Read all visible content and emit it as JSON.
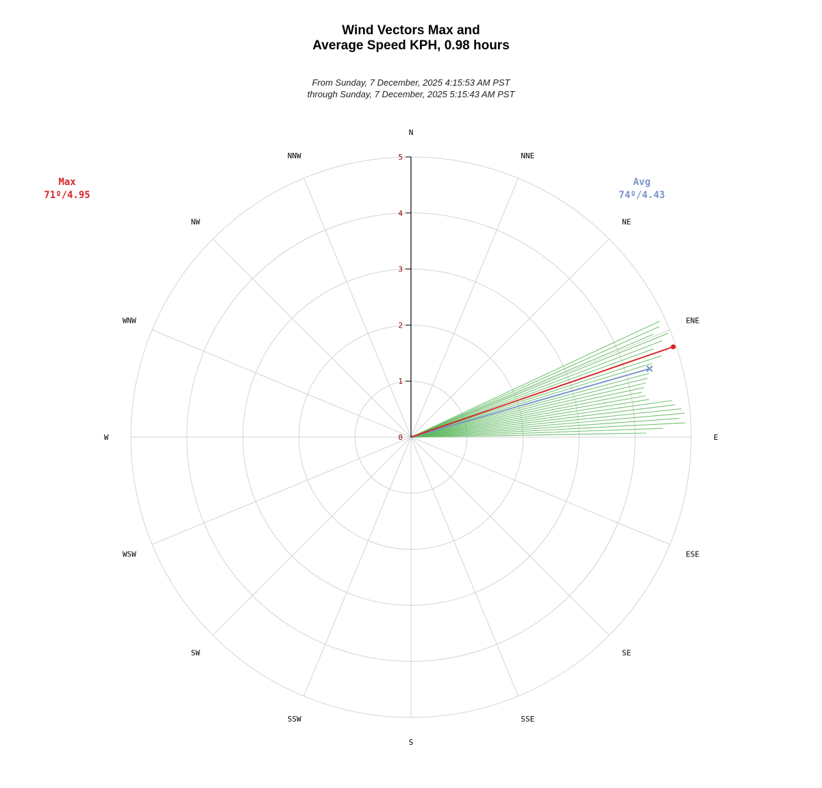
{
  "title_line1": "Wind Vectors Max and",
  "title_line2": "Average Speed KPH, 0.98 hours",
  "subtitle_line1": "From Sunday, 7 December, 2025 4:15:53 AM PST",
  "subtitle_line2": "through Sunday, 7 December, 2025 5:15:43 AM PST",
  "max_label": "Max",
  "max_value": "71º/4.95",
  "avg_label": "Avg",
  "avg_value": "74º/4.43",
  "colors": {
    "max": "#d62728",
    "avg": "#7b96c8",
    "vectors": "#5cb85c",
    "grid": "#d3d3d3",
    "axis": "#000000",
    "tick_label": "#8b0000"
  },
  "chart_data": {
    "type": "polar-vector",
    "title": "Wind Vectors Max and Average Speed KPH, 0.98 hours",
    "radial_ticks": [
      0,
      1,
      2,
      3,
      4,
      5
    ],
    "rlim": [
      0,
      5
    ],
    "directions": [
      "N",
      "NNE",
      "NE",
      "ENE",
      "E",
      "ESE",
      "SE",
      "SSE",
      "S",
      "SSW",
      "SW",
      "WSW",
      "W",
      "WNW",
      "NW",
      "NNW"
    ],
    "max": {
      "direction_deg": 71,
      "speed": 4.95
    },
    "avg": {
      "direction_deg": 74,
      "speed": 4.43
    },
    "vectors": [
      {
        "direction_deg": 65,
        "speed": 4.9
      },
      {
        "direction_deg": 66,
        "speed": 4.85
      },
      {
        "direction_deg": 67,
        "speed": 4.7
      },
      {
        "direction_deg": 68,
        "speed": 4.95
      },
      {
        "direction_deg": 69,
        "speed": 4.8
      },
      {
        "direction_deg": 70,
        "speed": 4.6
      },
      {
        "direction_deg": 71,
        "speed": 4.95
      },
      {
        "direction_deg": 72,
        "speed": 4.7
      },
      {
        "direction_deg": 73,
        "speed": 4.5
      },
      {
        "direction_deg": 74,
        "speed": 4.43
      },
      {
        "direction_deg": 75,
        "speed": 4.4
      },
      {
        "direction_deg": 76,
        "speed": 4.35
      },
      {
        "direction_deg": 77,
        "speed": 4.3
      },
      {
        "direction_deg": 78,
        "speed": 4.25
      },
      {
        "direction_deg": 79,
        "speed": 4.2
      },
      {
        "direction_deg": 80,
        "speed": 4.25
      },
      {
        "direction_deg": 81,
        "speed": 4.3
      },
      {
        "direction_deg": 82,
        "speed": 4.7
      },
      {
        "direction_deg": 83,
        "speed": 4.75
      },
      {
        "direction_deg": 84,
        "speed": 4.85
      },
      {
        "direction_deg": 85,
        "speed": 4.9
      },
      {
        "direction_deg": 86,
        "speed": 4.8
      },
      {
        "direction_deg": 87,
        "speed": 4.9
      },
      {
        "direction_deg": 88,
        "speed": 4.5
      },
      {
        "direction_deg": 89,
        "speed": 4.2
      }
    ]
  }
}
